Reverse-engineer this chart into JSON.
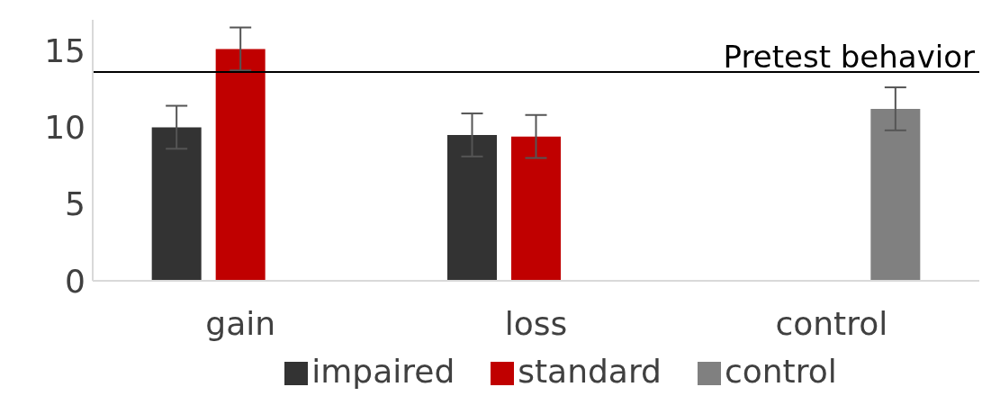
{
  "chart_data": {
    "type": "bar",
    "categories": [
      "gain",
      "loss",
      "control"
    ],
    "series": [
      {
        "name": "impaired",
        "color": "#333333",
        "values": [
          10.0,
          9.5,
          null
        ],
        "errors": [
          1.4,
          1.4,
          null
        ]
      },
      {
        "name": "standard",
        "color": "#c00000",
        "values": [
          15.1,
          9.4,
          null
        ],
        "errors": [
          1.4,
          1.4,
          null
        ]
      },
      {
        "name": "control",
        "color": "#808080",
        "values": [
          null,
          null,
          11.2
        ],
        "errors": [
          null,
          null,
          1.4
        ]
      }
    ],
    "ylim": [
      0,
      17
    ],
    "yticks": [
      0,
      5,
      10,
      15
    ],
    "grid": false,
    "legend": "bottom",
    "ref_lines": [
      {
        "axis": "y",
        "value": 13.6,
        "label": "Pretest behavior",
        "color": "#000000"
      }
    ]
  }
}
